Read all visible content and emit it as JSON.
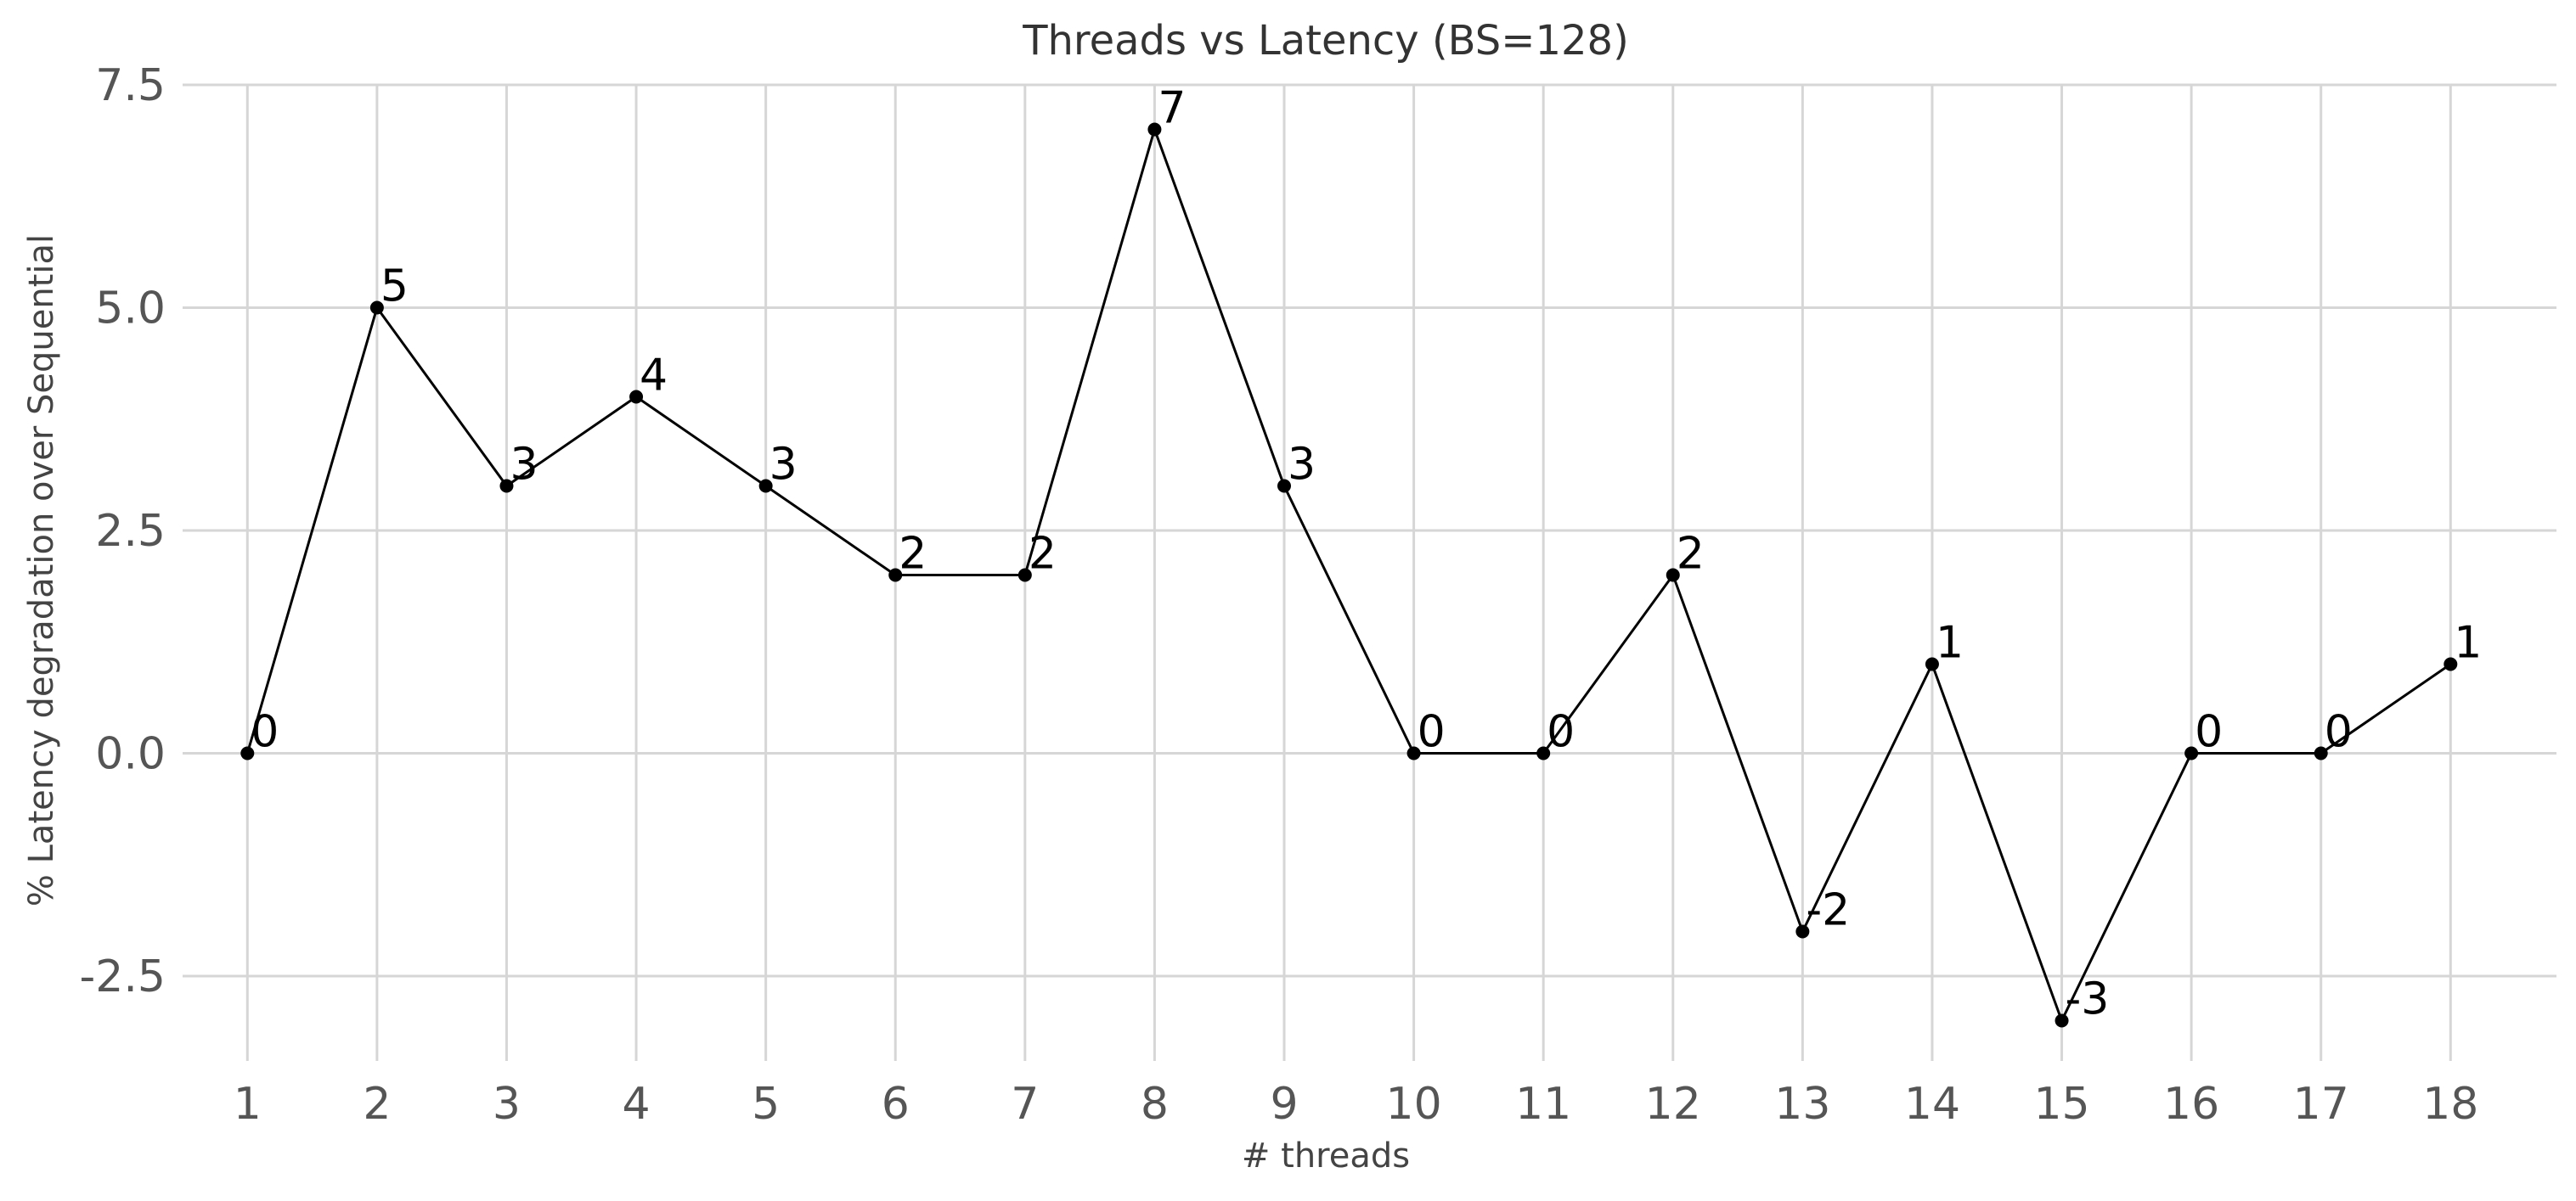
{
  "chart_data": {
    "type": "line",
    "title": "Threads vs Latency (BS=128)",
    "xlabel": "# threads",
    "ylabel": "% Latency degradation over Sequential",
    "x": [
      1,
      2,
      3,
      4,
      5,
      6,
      7,
      8,
      9,
      10,
      11,
      12,
      13,
      14,
      15,
      16,
      17,
      18
    ],
    "x_tick_labels": [
      "1",
      "2",
      "3",
      "4",
      "5",
      "6",
      "7",
      "8",
      "9",
      "10",
      "11",
      "12",
      "13",
      "14",
      "15",
      "16",
      "17",
      "18"
    ],
    "y_ticks": [
      -2.5,
      0.0,
      2.5,
      5.0,
      7.5
    ],
    "y_tick_labels": [
      "-2.5",
      "0.0",
      "2.5",
      "5.0",
      "7.5"
    ],
    "ylim": [
      -3.5,
      7.5
    ],
    "xlim": [
      0.5,
      18.85
    ],
    "grid": true,
    "series": [
      {
        "values": [
          0,
          5,
          3,
          4,
          3,
          2,
          2,
          7,
          3,
          0,
          0,
          2,
          -2,
          1,
          -3,
          0,
          0,
          1
        ],
        "data_labels": [
          "0",
          "5",
          "3",
          "4",
          "3",
          "2",
          "2",
          "7",
          "3",
          "0",
          "0",
          "2",
          "-2",
          "1",
          "-3",
          "0",
          "0",
          "1"
        ],
        "color": "#000000"
      }
    ]
  }
}
